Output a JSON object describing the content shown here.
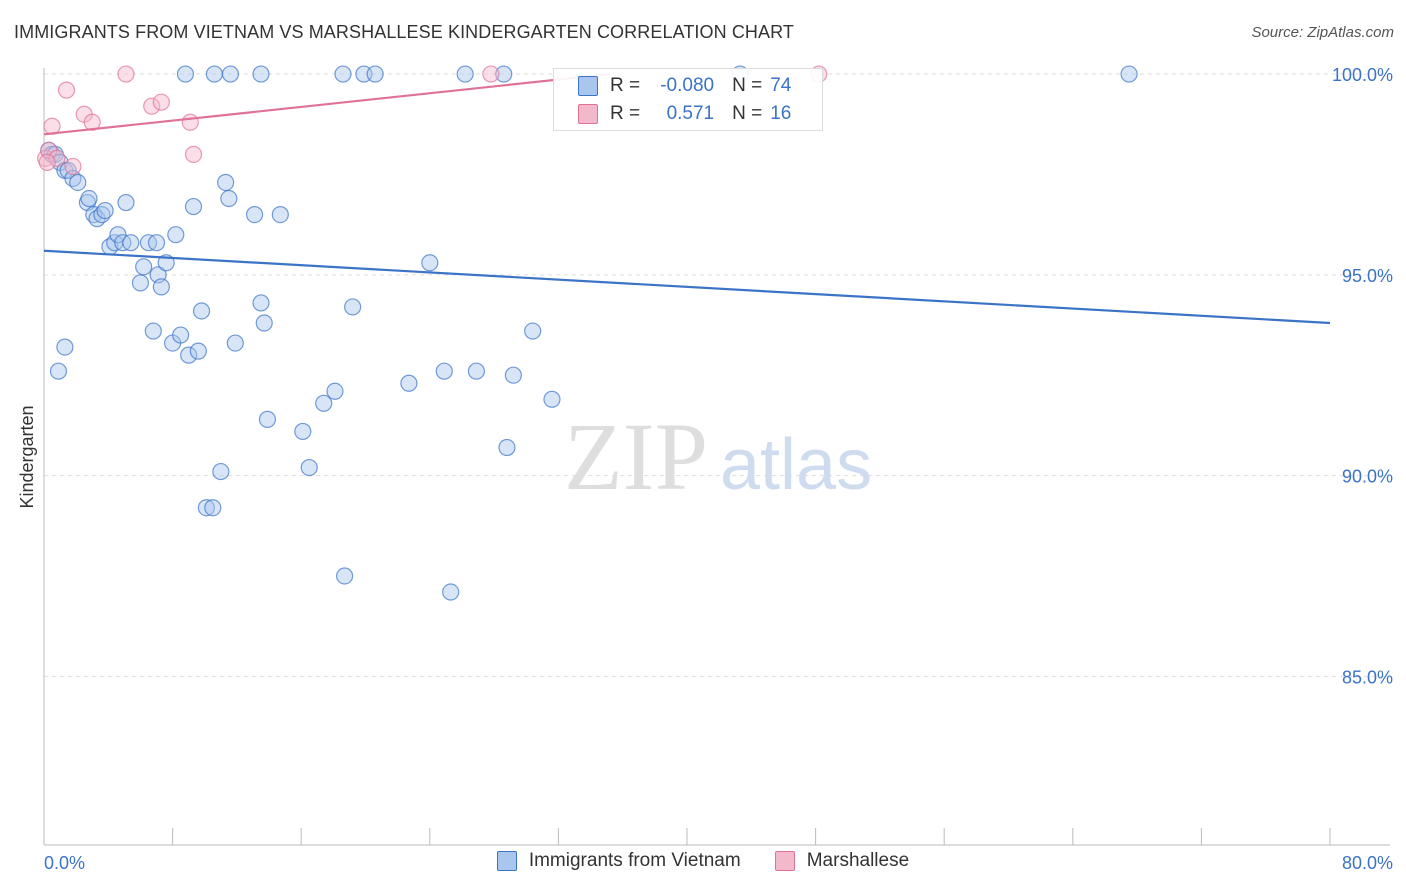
{
  "title": "IMMIGRANTS FROM VIETNAM VS MARSHALLESE KINDERGARTEN CORRELATION CHART",
  "source": "Source: ZipAtlas.com",
  "watermark": {
    "zip": "ZIP",
    "atlas": "atlas"
  },
  "legend_top": {
    "rows": [
      {
        "r_label": "R =",
        "r_value": "-0.080",
        "n_label": "N =",
        "n_value": "74"
      },
      {
        "r_label": "R =",
        "r_value": "0.571",
        "n_label": "N =",
        "n_value": "16"
      }
    ]
  },
  "chart_data": {
    "type": "scatter",
    "title": "IMMIGRANTS FROM VIETNAM VS MARSHALLESE KINDERGARTEN CORRELATION CHART",
    "xlabel": "",
    "ylabel": "Kindergarten",
    "xlim": [
      0,
      80
    ],
    "ylim": [
      80.8,
      100.4
    ],
    "x_tick_labels": [
      "0.0%",
      "80.0%"
    ],
    "y_ticks": [
      85,
      90,
      95,
      100
    ],
    "y_tick_labels": [
      "85.0%",
      "90.0%",
      "95.0%",
      "100.0%"
    ],
    "grid": true,
    "colors": {
      "blue": "#3b73c6",
      "blue_fill": "#a9c6ee",
      "pink": "#e07297",
      "pink_fill": "#f4b8cb",
      "tick_label": "#3b73c6"
    },
    "series": [
      {
        "name": "Immigrants from Vietnam",
        "r": -0.08,
        "n": 74,
        "trend": [
          [
            0,
            95.6
          ],
          [
            80,
            93.8
          ]
        ],
        "points": [
          [
            0.3,
            98.1
          ],
          [
            0.5,
            98.0
          ],
          [
            0.7,
            98.0
          ],
          [
            1.0,
            97.8
          ],
          [
            1.3,
            97.6
          ],
          [
            1.5,
            97.6
          ],
          [
            1.8,
            97.4
          ],
          [
            2.1,
            97.3
          ],
          [
            2.7,
            96.8
          ],
          [
            2.8,
            96.9
          ],
          [
            3.1,
            96.5
          ],
          [
            3.3,
            96.4
          ],
          [
            3.6,
            96.5
          ],
          [
            3.8,
            96.6
          ],
          [
            4.1,
            95.7
          ],
          [
            4.4,
            95.8
          ],
          [
            4.6,
            96.0
          ],
          [
            4.9,
            95.8
          ],
          [
            5.1,
            96.8
          ],
          [
            5.4,
            95.8
          ],
          [
            6.0,
            94.8
          ],
          [
            6.2,
            95.2
          ],
          [
            6.5,
            95.8
          ],
          [
            6.8,
            93.6
          ],
          [
            7.0,
            95.8
          ],
          [
            7.1,
            95.0
          ],
          [
            7.3,
            94.7
          ],
          [
            7.6,
            95.3
          ],
          [
            8.0,
            93.3
          ],
          [
            8.2,
            96.0
          ],
          [
            8.5,
            93.5
          ],
          [
            9.0,
            93.0
          ],
          [
            9.3,
            96.7
          ],
          [
            9.6,
            93.1
          ],
          [
            9.8,
            94.1
          ],
          [
            10.1,
            89.2
          ],
          [
            10.5,
            89.2
          ],
          [
            11.0,
            90.1
          ],
          [
            11.3,
            97.3
          ],
          [
            11.5,
            96.9
          ],
          [
            11.9,
            93.3
          ],
          [
            13.1,
            96.5
          ],
          [
            13.5,
            94.3
          ],
          [
            13.7,
            93.8
          ],
          [
            13.9,
            91.4
          ],
          [
            14.7,
            96.5
          ],
          [
            16.1,
            91.1
          ],
          [
            16.5,
            90.2
          ],
          [
            17.4,
            91.8
          ],
          [
            18.1,
            92.1
          ],
          [
            18.7,
            87.5
          ],
          [
            19.2,
            94.2
          ],
          [
            22.7,
            92.3
          ],
          [
            24.0,
            95.3
          ],
          [
            24.9,
            92.6
          ],
          [
            25.3,
            87.1
          ],
          [
            26.9,
            92.6
          ],
          [
            28.8,
            90.7
          ],
          [
            29.2,
            92.5
          ],
          [
            30.4,
            93.6
          ],
          [
            31.6,
            91.9
          ],
          [
            1.3,
            93.2
          ],
          [
            0.9,
            92.6
          ],
          [
            8.8,
            100.0
          ],
          [
            10.6,
            100.0
          ],
          [
            11.6,
            100.0
          ],
          [
            13.5,
            100.0
          ],
          [
            18.6,
            100.0
          ],
          [
            19.9,
            100.0
          ],
          [
            20.6,
            100.0
          ],
          [
            26.2,
            100.0
          ],
          [
            28.6,
            100.0
          ],
          [
            43.3,
            100.0
          ],
          [
            67.5,
            100.0
          ]
        ]
      },
      {
        "name": "Marshallese",
        "r": 0.571,
        "n": 16,
        "trend": [
          [
            0,
            98.5
          ],
          [
            35.2,
            100.0
          ]
        ],
        "points": [
          [
            0.1,
            97.9
          ],
          [
            0.3,
            98.1
          ],
          [
            0.5,
            98.7
          ],
          [
            0.8,
            97.9
          ],
          [
            1.4,
            99.6
          ],
          [
            1.8,
            97.7
          ],
          [
            2.5,
            99.0
          ],
          [
            3.0,
            98.8
          ],
          [
            5.1,
            100.0
          ],
          [
            6.7,
            99.2
          ],
          [
            7.3,
            99.3
          ],
          [
            9.1,
            98.8
          ],
          [
            9.3,
            98.0
          ],
          [
            27.8,
            100.0
          ],
          [
            48.2,
            100.0
          ],
          [
            0.2,
            97.8
          ]
        ]
      }
    ]
  }
}
